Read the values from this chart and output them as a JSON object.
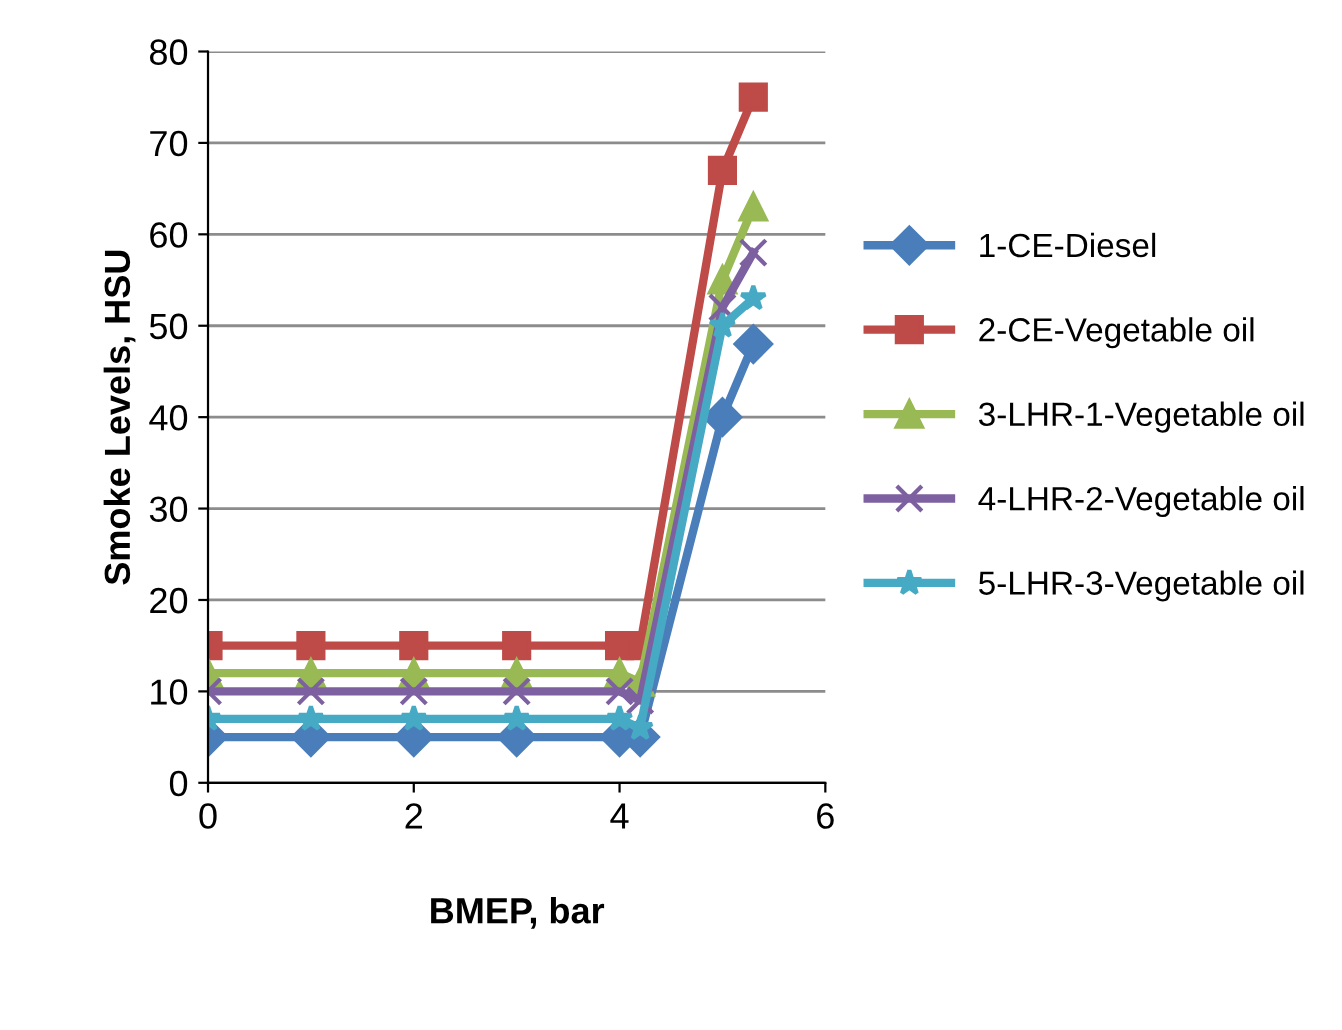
{
  "chart_data": {
    "type": "line",
    "xlabel": "BMEP, bar",
    "ylabel": "Smoke Levels, HSU",
    "xlim": [
      0,
      6
    ],
    "xticks": [
      0,
      2,
      4,
      6
    ],
    "ylim": [
      0,
      80
    ],
    "yticks": [
      0,
      10,
      20,
      30,
      40,
      50,
      60,
      70,
      80
    ],
    "grid": "y",
    "legend": "right",
    "series": [
      {
        "name": "1-CE-Diesel",
        "color": "#4a7ebb",
        "marker": "diamond",
        "x": [
          0,
          1,
          2,
          3,
          4,
          4.2,
          5,
          5.3
        ],
        "values": [
          5,
          5,
          5,
          5,
          5,
          5,
          40,
          48
        ]
      },
      {
        "name": "2-CE-Vegetable oil",
        "color": "#be4b48",
        "marker": "square",
        "x": [
          0,
          1,
          2,
          3,
          4,
          4.2,
          5,
          5.3
        ],
        "values": [
          15,
          15,
          15,
          15,
          15,
          15,
          67,
          75
        ]
      },
      {
        "name": "3-LHR-1-Vegetable oil",
        "color": "#98b954",
        "marker": "triangle",
        "x": [
          0,
          1,
          2,
          3,
          4,
          4.2,
          5,
          5.3
        ],
        "values": [
          12,
          12,
          12,
          12,
          12,
          11,
          55,
          63
        ]
      },
      {
        "name": "4-LHR-2-Vegetable oil",
        "color": "#7d60a0",
        "marker": "cross",
        "x": [
          0,
          1,
          2,
          3,
          4,
          4.2,
          5,
          5.3
        ],
        "values": [
          10,
          10,
          10,
          10,
          10,
          9,
          52,
          58
        ]
      },
      {
        "name": "5-LHR-3-Vegetable oil",
        "color": "#46aac5",
        "marker": "star",
        "x": [
          0,
          1,
          2,
          3,
          4,
          4.2,
          5,
          5.3
        ],
        "values": [
          7,
          7,
          7,
          7,
          7,
          6,
          50,
          53
        ]
      }
    ]
  }
}
